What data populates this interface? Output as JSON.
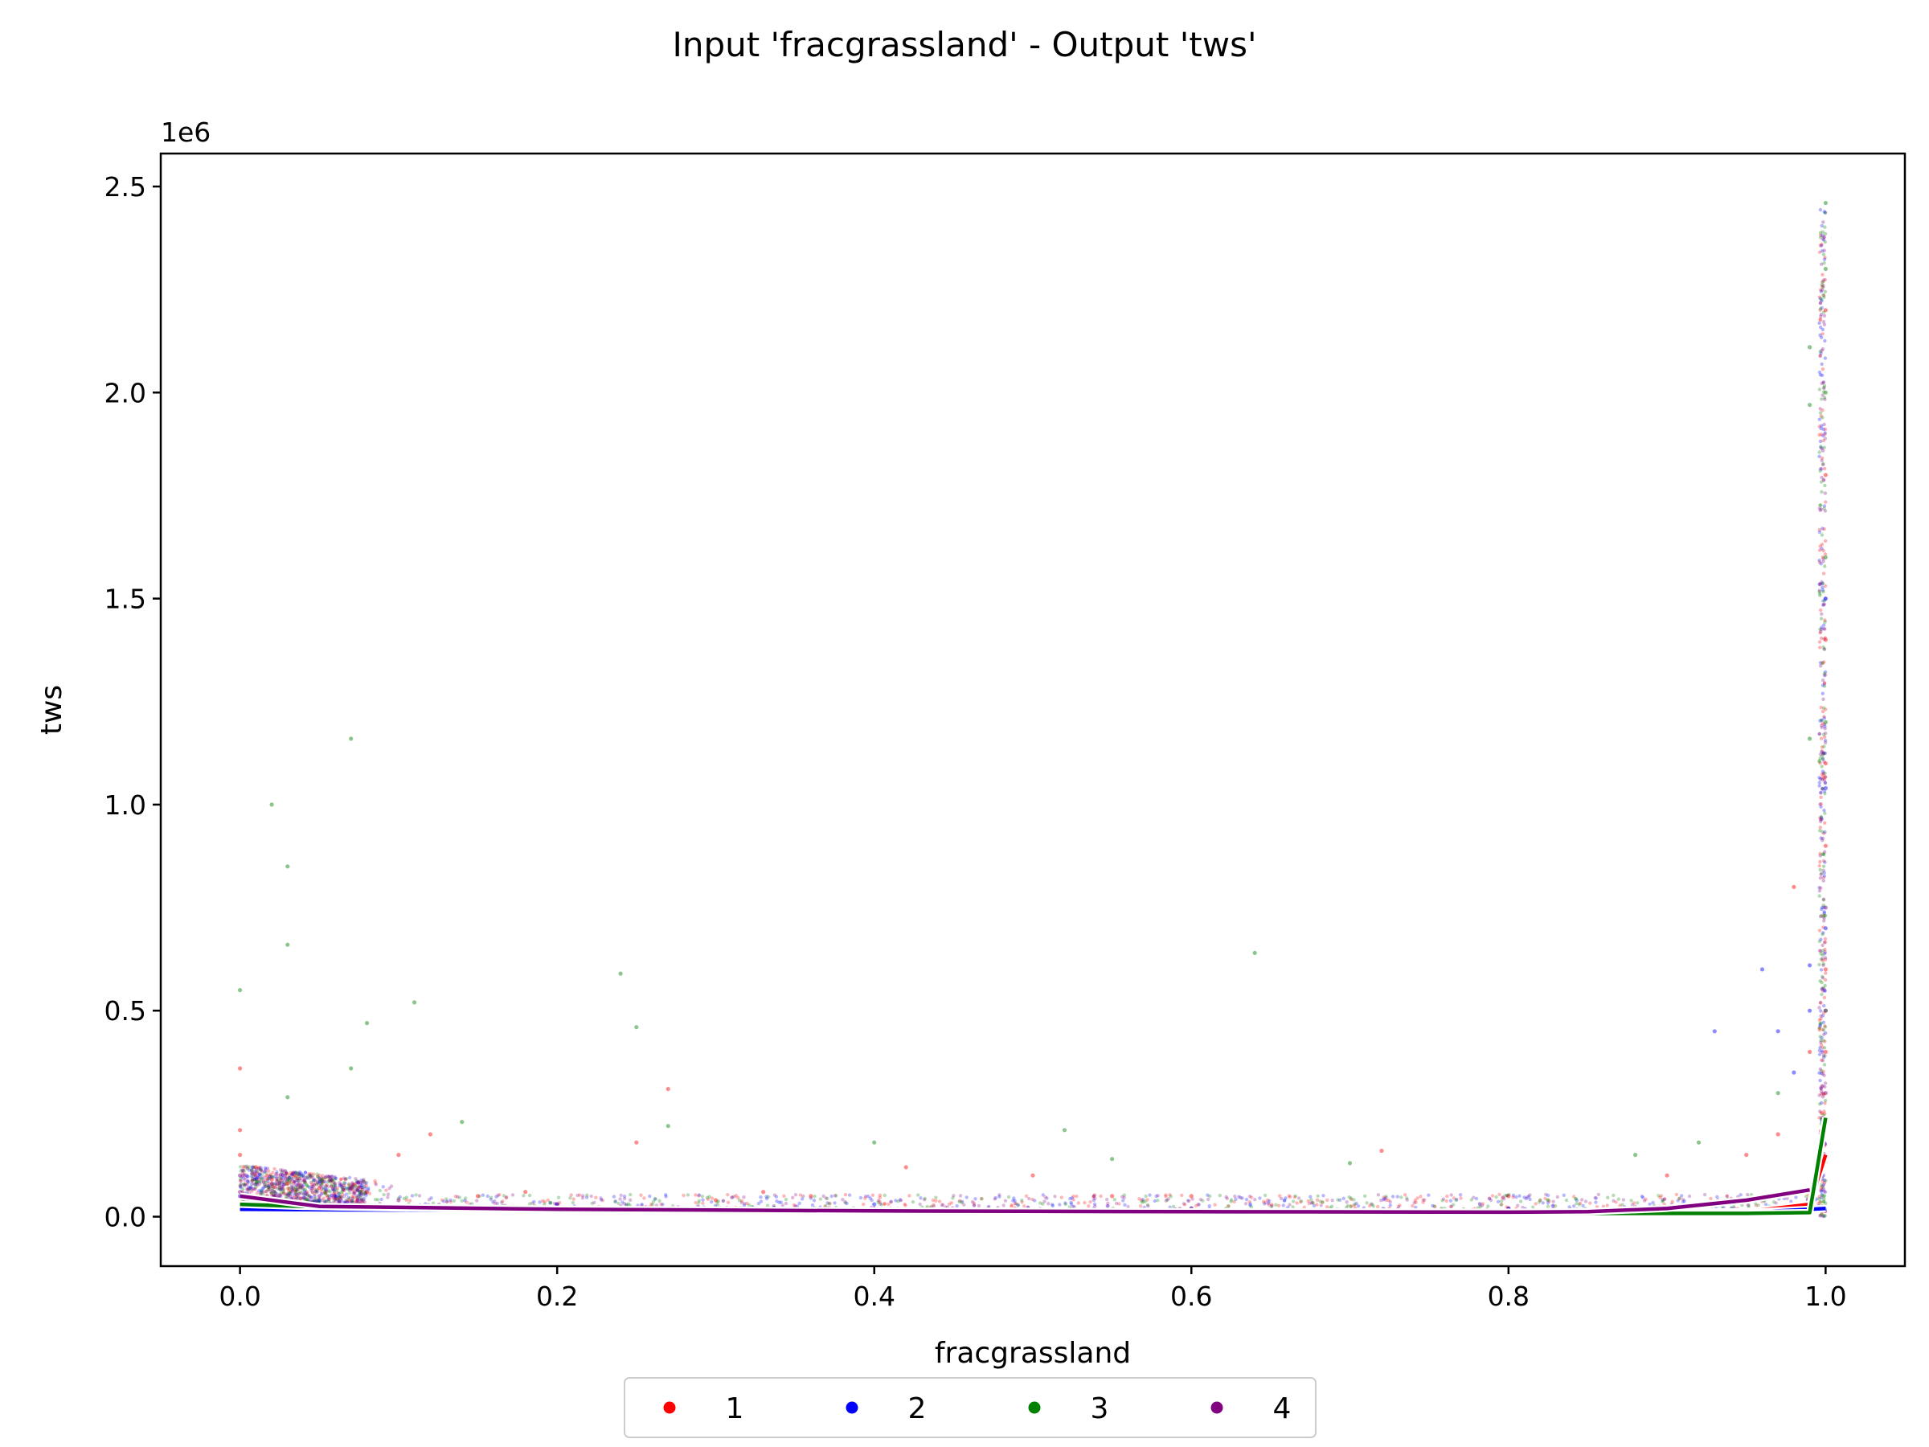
{
  "chart_data": {
    "type": "scatter",
    "title": "Input 'fracgrassland' - Output 'tws'",
    "xlabel": "fracgrassland",
    "ylabel": "tws",
    "y_offset_label": "1e6",
    "y_scale": 1000000,
    "xlim": [
      -0.05,
      1.05
    ],
    "ylim": [
      -0.12,
      2.58
    ],
    "x_ticks": [
      0.0,
      0.2,
      0.4,
      0.6,
      0.8,
      1.0
    ],
    "x_tick_labels": [
      "0.0",
      "0.2",
      "0.4",
      "0.6",
      "0.8",
      "1.0"
    ],
    "y_ticks": [
      0.0,
      0.5,
      1.0,
      1.5,
      2.0,
      2.5
    ],
    "y_tick_labels": [
      "0.0",
      "0.5",
      "1.0",
      "1.5",
      "2.0",
      "2.5"
    ],
    "grid": false,
    "legend": {
      "placement": "bottom-center-outside",
      "columns": 4
    },
    "series": [
      {
        "name": "1",
        "color": "#ff0000",
        "points": [
          [
            0.0,
            0.36
          ],
          [
            0.0,
            0.21
          ],
          [
            0.0,
            0.15
          ],
          [
            0.01,
            0.12
          ],
          [
            0.02,
            0.09
          ],
          [
            0.03,
            0.08
          ],
          [
            0.05,
            0.07
          ],
          [
            0.08,
            0.06
          ],
          [
            0.1,
            0.15
          ],
          [
            0.12,
            0.2
          ],
          [
            0.15,
            0.05
          ],
          [
            0.18,
            0.06
          ],
          [
            0.25,
            0.18
          ],
          [
            0.27,
            0.31
          ],
          [
            0.3,
            0.04
          ],
          [
            0.33,
            0.06
          ],
          [
            0.36,
            0.05
          ],
          [
            0.42,
            0.12
          ],
          [
            0.5,
            0.1
          ],
          [
            0.55,
            0.05
          ],
          [
            0.6,
            0.05
          ],
          [
            0.72,
            0.16
          ],
          [
            0.8,
            0.05
          ],
          [
            0.9,
            0.1
          ],
          [
            0.95,
            0.15
          ],
          [
            0.97,
            0.2
          ],
          [
            0.98,
            0.8
          ],
          [
            0.99,
            0.4
          ],
          [
            1.0,
            1.4
          ],
          [
            1.0,
            1.1
          ],
          [
            1.0,
            0.9
          ],
          [
            1.0,
            0.6
          ],
          [
            1.0,
            0.4
          ],
          [
            1.0,
            1.8
          ],
          [
            1.0,
            2.2
          ]
        ],
        "trend": [
          [
            0.0,
            0.02
          ],
          [
            0.2,
            0.015
          ],
          [
            0.4,
            0.012
          ],
          [
            0.6,
            0.01
          ],
          [
            0.8,
            0.009
          ],
          [
            0.95,
            0.012
          ],
          [
            0.99,
            0.03
          ],
          [
            1.0,
            0.15
          ]
        ]
      },
      {
        "name": "2",
        "color": "#0000ff",
        "points": [
          [
            0.0,
            0.05
          ],
          [
            0.05,
            0.04
          ],
          [
            0.2,
            0.03
          ],
          [
            0.4,
            0.03
          ],
          [
            0.6,
            0.02
          ],
          [
            0.8,
            0.02
          ],
          [
            0.93,
            0.45
          ],
          [
            0.96,
            0.6
          ],
          [
            0.97,
            0.45
          ],
          [
            0.98,
            0.35
          ],
          [
            0.99,
            0.61
          ],
          [
            0.99,
            0.5
          ],
          [
            1.0,
            1.04
          ],
          [
            1.0,
            0.7
          ],
          [
            1.0,
            1.5
          ]
        ],
        "trend": [
          [
            0.0,
            0.018
          ],
          [
            0.2,
            0.014
          ],
          [
            0.4,
            0.011
          ],
          [
            0.6,
            0.01
          ],
          [
            0.8,
            0.009
          ],
          [
            0.95,
            0.01
          ],
          [
            1.0,
            0.02
          ]
        ]
      },
      {
        "name": "3",
        "color": "#008000",
        "points": [
          [
            0.0,
            0.55
          ],
          [
            0.02,
            1.0
          ],
          [
            0.03,
            0.85
          ],
          [
            0.03,
            0.66
          ],
          [
            0.03,
            0.29
          ],
          [
            0.07,
            1.16
          ],
          [
            0.07,
            0.36
          ],
          [
            0.08,
            0.47
          ],
          [
            0.11,
            0.52
          ],
          [
            0.14,
            0.23
          ],
          [
            0.24,
            0.59
          ],
          [
            0.25,
            0.46
          ],
          [
            0.27,
            0.22
          ],
          [
            0.4,
            0.18
          ],
          [
            0.52,
            0.21
          ],
          [
            0.64,
            0.64
          ],
          [
            0.55,
            0.14
          ],
          [
            0.7,
            0.13
          ],
          [
            0.88,
            0.15
          ],
          [
            0.92,
            0.18
          ],
          [
            0.97,
            0.3
          ],
          [
            0.99,
            1.16
          ],
          [
            0.99,
            1.97
          ],
          [
            0.99,
            2.11
          ],
          [
            1.0,
            2.46
          ],
          [
            1.0,
            2.3
          ],
          [
            1.0,
            2.0
          ],
          [
            1.0,
            1.6
          ],
          [
            1.0,
            1.2
          ],
          [
            1.0,
            0.5
          ]
        ],
        "trend": [
          [
            0.0,
            0.03
          ],
          [
            0.04,
            0.025
          ],
          [
            0.2,
            0.015
          ],
          [
            0.4,
            0.012
          ],
          [
            0.6,
            0.01
          ],
          [
            0.8,
            0.008
          ],
          [
            0.95,
            0.008
          ],
          [
            0.99,
            0.01
          ],
          [
            1.0,
            0.24
          ]
        ]
      },
      {
        "name": "4",
        "color": "#800080",
        "points": [
          [
            0.0,
            0.1
          ],
          [
            0.0,
            0.06
          ],
          [
            0.02,
            0.08
          ],
          [
            0.05,
            0.05
          ],
          [
            0.1,
            0.04
          ],
          [
            0.2,
            0.03
          ],
          [
            0.4,
            0.02
          ],
          [
            0.6,
            0.02
          ],
          [
            0.8,
            0.02
          ],
          [
            1.0,
            0.75
          ],
          [
            1.0,
            0.5
          ],
          [
            1.0,
            0.3
          ]
        ],
        "trend": [
          [
            0.0,
            0.05
          ],
          [
            0.05,
            0.025
          ],
          [
            0.2,
            0.018
          ],
          [
            0.4,
            0.014
          ],
          [
            0.6,
            0.012
          ],
          [
            0.8,
            0.011
          ],
          [
            0.85,
            0.012
          ],
          [
            0.9,
            0.02
          ],
          [
            0.95,
            0.04
          ],
          [
            0.99,
            0.065
          ]
        ]
      }
    ]
  }
}
